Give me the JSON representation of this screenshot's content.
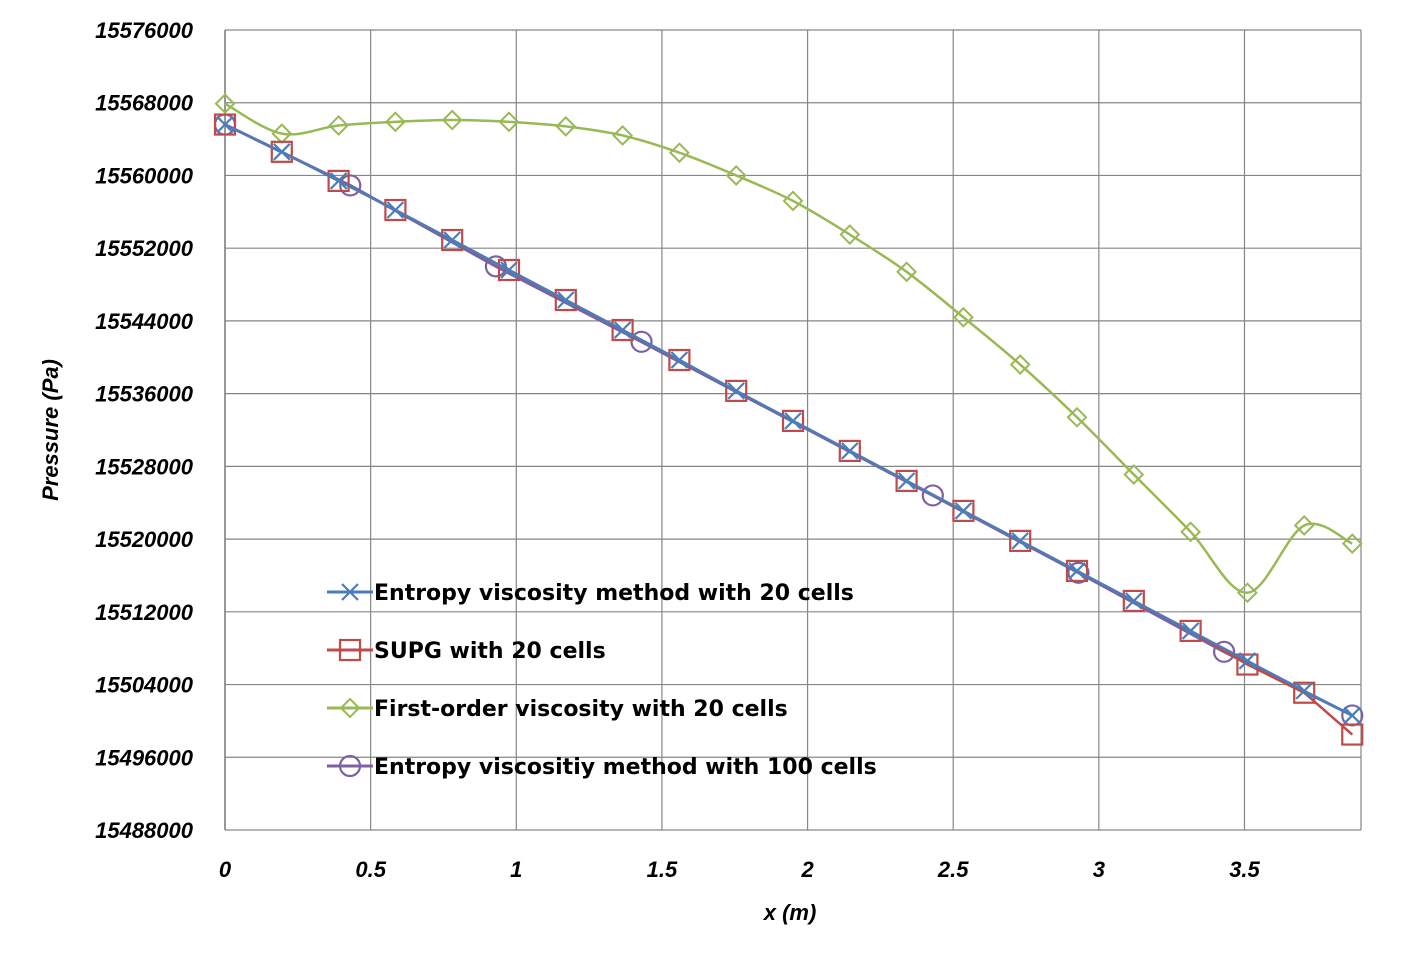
{
  "chart_data": {
    "type": "line",
    "title": "",
    "xlabel": "x (m)",
    "ylabel": "Pressure (Pa)",
    "xlim": [
      0,
      3.9
    ],
    "ylim": [
      15488000,
      15576000
    ],
    "xticks": [
      0,
      0.5,
      1,
      1.5,
      2,
      2.5,
      3,
      3.5
    ],
    "xtick_labels": [
      "0",
      "0.5",
      "1",
      "1.5",
      "2",
      "2.5",
      "3",
      "3.5"
    ],
    "yticks": [
      15488000,
      15496000,
      15504000,
      15512000,
      15520000,
      15528000,
      15536000,
      15544000,
      15552000,
      15560000,
      15568000,
      15576000
    ],
    "ytick_labels": [
      "15488000",
      "15496000",
      "15504000",
      "15512000",
      "15520000",
      "15528000",
      "15536000",
      "15544000",
      "15552000",
      "15560000",
      "15568000",
      "15576000"
    ],
    "grid": true,
    "legend_position": "lower-left",
    "series": [
      {
        "name": "Entropy viscosity method with 20 cells",
        "color": "#4a7ebb",
        "marker": "x",
        "x": [
          0,
          0.195,
          0.39,
          0.585,
          0.78,
          0.975,
          1.17,
          1.365,
          1.56,
          1.755,
          1.95,
          2.145,
          2.34,
          2.535,
          2.73,
          2.925,
          3.12,
          3.315,
          3.51,
          3.705,
          3.87
        ],
        "y": [
          15565600,
          15562600,
          15559400,
          15556200,
          15552900,
          15549600,
          15546300,
          15543000,
          15539700,
          15536300,
          15533000,
          15529700,
          15526400,
          15523100,
          15519800,
          15516500,
          15513200,
          15509900,
          15506600,
          15503300,
          15500600
        ]
      },
      {
        "name": "SUPG with 20 cells",
        "color": "#be4b48",
        "marker": "square",
        "x": [
          0,
          0.195,
          0.39,
          0.585,
          0.78,
          0.975,
          1.17,
          1.365,
          1.56,
          1.755,
          1.95,
          2.145,
          2.34,
          2.535,
          2.73,
          2.925,
          3.12,
          3.315,
          3.51,
          3.705,
          3.87
        ],
        "y": [
          15565600,
          15562600,
          15559400,
          15556200,
          15552900,
          15549600,
          15546300,
          15543000,
          15539700,
          15536300,
          15533000,
          15529700,
          15526400,
          15523100,
          15519800,
          15516500,
          15513200,
          15509900,
          15506200,
          15503100,
          15498500
        ]
      },
      {
        "name": "First-order viscosity with 20 cells",
        "color": "#98b954",
        "marker": "diamond",
        "x": [
          0,
          0.195,
          0.39,
          0.585,
          0.78,
          0.975,
          1.17,
          1.365,
          1.56,
          1.755,
          1.95,
          2.145,
          2.34,
          2.535,
          2.73,
          2.925,
          3.12,
          3.315,
          3.51,
          3.705,
          3.87
        ],
        "y": [
          15567900,
          15564600,
          15565500,
          15565900,
          15566100,
          15565900,
          15565400,
          15564400,
          15562500,
          15560000,
          15557200,
          15553500,
          15549400,
          15544400,
          15539200,
          15533400,
          15527100,
          15520800,
          15514100,
          15521500,
          15519500
        ]
      },
      {
        "name": "Entropy viscositiy method with 100 cells",
        "color": "#7d60a0",
        "marker": "circle",
        "x": [
          0,
          0.43,
          0.93,
          1.43,
          2.43,
          2.93,
          3.43,
          3.87
        ],
        "y": [
          15565600,
          15558900,
          15550000,
          15541700,
          15524800,
          15516300,
          15507600,
          15500600
        ]
      }
    ]
  }
}
